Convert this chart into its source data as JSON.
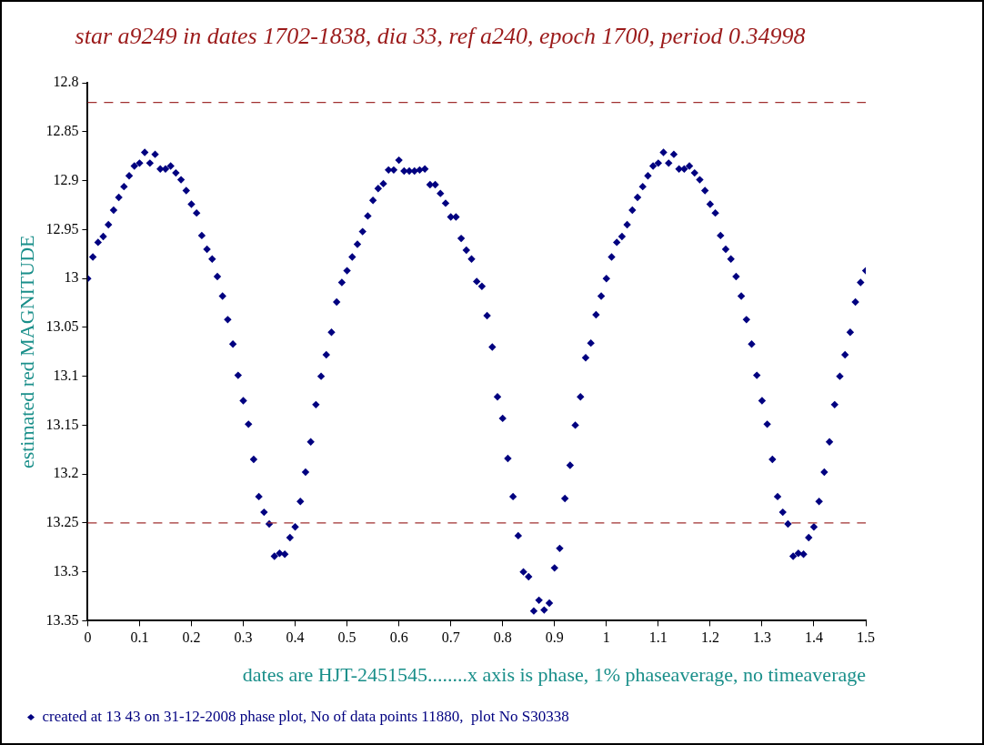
{
  "chart_data": {
    "type": "scatter",
    "title": "star a9249 in dates 1702-1838, dia 33, ref a240, epoch 1700, period 0.34998",
    "xlabel": "dates are HJT-2451545........x axis is phase, 1% phaseaverage, no timeaverage",
    "ylabel": "estimated red MAGNITUDE",
    "xlim": [
      0,
      1.5
    ],
    "xticks": [
      0,
      0.1,
      0.2,
      0.3,
      0.4,
      0.5,
      0.6,
      0.7,
      0.8,
      0.9,
      1,
      1.1,
      1.2,
      1.3,
      1.4,
      1.5
    ],
    "ylim": [
      13.35,
      12.8
    ],
    "yticks": [
      12.8,
      12.85,
      12.9,
      12.95,
      13,
      13.05,
      13.1,
      13.15,
      13.2,
      13.25,
      13.3,
      13.35
    ],
    "grid": false,
    "legend": "bottom",
    "marker": "diamond",
    "ref_lines": [
      {
        "axis": "y",
        "value": 12.82,
        "color": "#a03030",
        "line_style": "dashed"
      },
      {
        "axis": "y",
        "value": 13.25,
        "color": "#a03030",
        "line_style": "dashed"
      }
    ],
    "series": [
      {
        "name": "created at 13 43 on 31-12-2008 phase plot, No of data points 11880,  plot No S30338",
        "color": "#000080",
        "x": [
          0,
          0.01,
          0.02,
          0.03,
          0.04,
          0.05,
          0.06,
          0.07,
          0.08,
          0.09,
          0.1,
          0.11,
          0.12,
          0.13,
          0.14,
          0.15,
          0.16,
          0.17,
          0.18,
          0.19,
          0.2,
          0.21,
          0.22,
          0.23,
          0.24,
          0.25,
          0.26,
          0.27,
          0.28,
          0.29,
          0.3,
          0.31,
          0.32,
          0.33,
          0.34,
          0.35,
          0.36,
          0.37,
          0.38,
          0.39,
          0.4,
          0.41,
          0.42,
          0.43,
          0.44,
          0.45,
          0.46,
          0.47,
          0.48,
          0.49,
          0.5,
          0.51,
          0.52,
          0.53,
          0.54,
          0.55,
          0.56,
          0.57,
          0.58,
          0.59,
          0.6,
          0.61,
          0.62,
          0.63,
          0.64,
          0.65,
          0.66,
          0.67,
          0.68,
          0.69,
          0.7,
          0.71,
          0.72,
          0.73,
          0.74,
          0.75,
          0.76,
          0.77,
          0.78,
          0.79,
          0.8,
          0.81,
          0.82,
          0.83,
          0.84,
          0.85,
          0.86,
          0.87,
          0.88,
          0.89,
          0.9,
          0.91,
          0.92,
          0.93,
          0.94,
          0.95,
          0.96,
          0.97,
          0.98,
          0.99,
          1,
          1.01,
          1.02,
          1.03,
          1.04,
          1.05,
          1.06,
          1.07,
          1.08,
          1.09,
          1.1,
          1.11,
          1.12,
          1.13,
          1.14,
          1.15,
          1.16,
          1.17,
          1.18,
          1.19,
          1.2,
          1.21,
          1.22,
          1.23,
          1.24,
          1.25,
          1.26,
          1.27,
          1.28,
          1.29,
          1.3,
          1.31,
          1.32,
          1.33,
          1.34,
          1.35,
          1.36,
          1.37,
          1.38,
          1.39,
          1.4,
          1.41,
          1.42,
          1.43,
          1.44,
          1.45,
          1.46,
          1.47,
          1.48,
          1.49,
          1.5
        ],
        "values": [
          13.0,
          12.978,
          12.963,
          12.957,
          12.945,
          12.93,
          12.917,
          12.906,
          12.895,
          12.885,
          12.882,
          12.871,
          12.882,
          12.873,
          12.888,
          12.888,
          12.885,
          12.892,
          12.899,
          12.91,
          12.924,
          12.933,
          12.956,
          12.97,
          12.98,
          12.998,
          13.018,
          13.042,
          13.067,
          13.099,
          13.125,
          13.149,
          13.185,
          13.223,
          13.239,
          13.251,
          13.284,
          13.281,
          13.282,
          13.265,
          13.254,
          13.228,
          13.198,
          13.167,
          13.129,
          13.1,
          13.078,
          13.055,
          13.024,
          13.004,
          12.992,
          12.978,
          12.965,
          12.952,
          12.936,
          12.92,
          12.908,
          12.903,
          12.889,
          12.889,
          12.879,
          12.89,
          12.89,
          12.89,
          12.889,
          12.888,
          12.904,
          12.904,
          12.913,
          12.923,
          12.937,
          12.937,
          12.959,
          12.971,
          12.98,
          13.003,
          13.008,
          13.038,
          13.07,
          13.121,
          13.143,
          13.184,
          13.223,
          13.263,
          13.3,
          13.305,
          13.34,
          13.329,
          13.339,
          13.332,
          13.296,
          13.276,
          13.225,
          13.191,
          13.15,
          13.121,
          13.081,
          13.066,
          13.037,
          13.018,
          13.0,
          12.978,
          12.963,
          12.957,
          12.945,
          12.93,
          12.917,
          12.906,
          12.895,
          12.885,
          12.882,
          12.871,
          12.882,
          12.873,
          12.888,
          12.888,
          12.885,
          12.892,
          12.899,
          12.91,
          12.924,
          12.933,
          12.956,
          12.97,
          12.98,
          12.998,
          13.018,
          13.042,
          13.067,
          13.099,
          13.125,
          13.149,
          13.185,
          13.223,
          13.239,
          13.251,
          13.284,
          13.281,
          13.282,
          13.265,
          13.254,
          13.228,
          13.198,
          13.167,
          13.129,
          13.1,
          13.078,
          13.055,
          13.024,
          13.004,
          12.992
        ]
      }
    ]
  }
}
